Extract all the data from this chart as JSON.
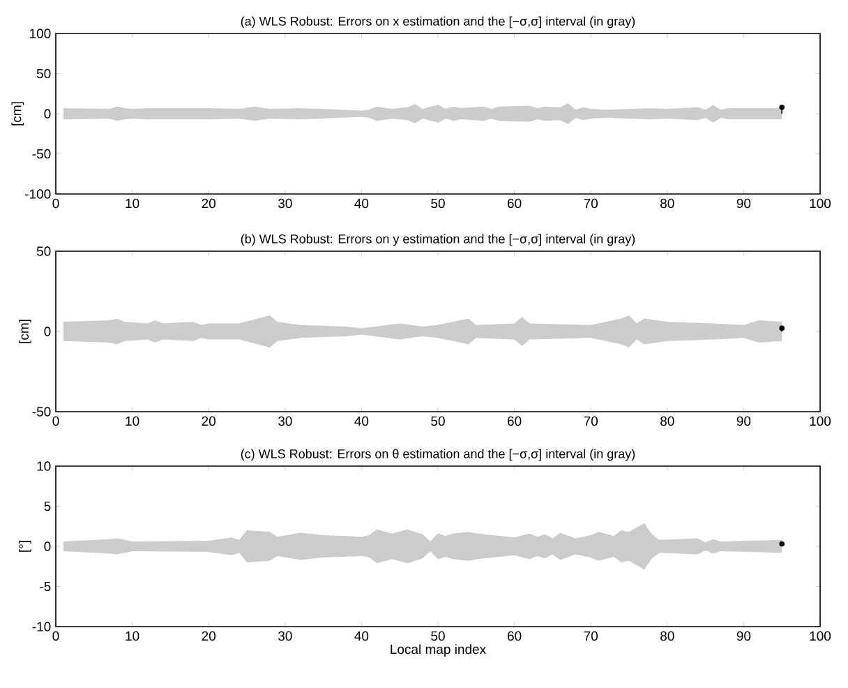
{
  "chart_data": [
    {
      "type": "area",
      "title": "(a) WLS Robust: Errors on x estimation and the [−σ,σ] interval (in gray)",
      "ylabel": "[cm]",
      "xlim": [
        0,
        100
      ],
      "xticks": [
        0,
        10,
        20,
        30,
        40,
        50,
        60,
        70,
        80,
        90,
        100
      ],
      "ylim": [
        -100,
        100
      ],
      "yticks": [
        -100,
        -50,
        0,
        50,
        100
      ],
      "series": [
        {
          "color": "#cccccc",
          "values": [
            null,
            null,
            null,
            null,
            null,
            null,
            null,
            null,
            null,
            null,
            null,
            null,
            null,
            null,
            null,
            null,
            null,
            null,
            null,
            null,
            null,
            null,
            null,
            null,
            null,
            null,
            null,
            null,
            null,
            null,
            null,
            null,
            null,
            null,
            null,
            null,
            null,
            null,
            null,
            null,
            null,
            null
          ],
          "x": [
            1,
            7,
            8,
            9,
            10,
            12,
            20,
            24,
            26,
            28,
            32,
            40,
            41,
            42,
            44,
            46,
            47,
            48,
            50,
            51,
            52,
            53,
            56,
            57,
            58,
            62,
            63,
            64,
            66,
            67,
            68,
            69,
            70,
            72,
            78,
            80,
            84,
            85,
            86,
            87,
            88,
            95
          ],
          "upper": [
            7,
            6,
            9,
            7,
            6,
            7,
            7,
            6,
            9,
            6,
            7,
            4,
            5,
            9,
            6,
            8,
            12,
            6,
            11,
            6,
            9,
            7,
            9,
            6,
            9,
            10,
            7,
            9,
            8,
            13,
            5,
            8,
            6,
            5,
            7,
            6,
            8,
            5,
            11,
            5,
            7,
            7
          ],
          "lower": [
            -7,
            -6,
            -9,
            -7,
            -6,
            -7,
            -7,
            -6,
            -9,
            -6,
            -7,
            -4,
            -5,
            -9,
            -6,
            -8,
            -12,
            -6,
            -11,
            -6,
            -9,
            -7,
            -9,
            -6,
            -9,
            -10,
            -7,
            -9,
            -8,
            -13,
            -5,
            -8,
            -6,
            -5,
            -7,
            -6,
            -8,
            -5,
            -11,
            -5,
            -7,
            -7
          ]
        },
        {
          "type": "lollipop",
          "color": "#000000",
          "marker": "circle",
          "x": [
            95
          ],
          "values": [
            8
          ]
        }
      ]
    },
    {
      "type": "area",
      "title": "(b) WLS Robust: Errors on y estimation and the [−σ,σ] interval (in gray)",
      "ylabel": "[cm]",
      "xlim": [
        0,
        100
      ],
      "xticks": [
        0,
        10,
        20,
        30,
        40,
        50,
        60,
        70,
        80,
        90,
        100
      ],
      "ylim": [
        -50,
        50
      ],
      "yticks": [
        -50,
        0,
        50
      ],
      "series": [
        {
          "color": "#cccccc",
          "values": [
            null,
            null,
            null,
            null,
            null,
            null,
            null,
            null,
            null,
            null,
            null,
            null,
            null,
            null,
            null,
            null,
            null,
            null,
            null,
            null,
            null,
            null,
            null,
            null,
            null,
            null,
            null,
            null,
            null,
            null,
            null,
            null,
            null,
            null
          ],
          "x": [
            1,
            7,
            8,
            9,
            12,
            13,
            14,
            18,
            19,
            20,
            24,
            28,
            29,
            32,
            38,
            40,
            45,
            48,
            50,
            54,
            55,
            60,
            61,
            62,
            70,
            74,
            75,
            76,
            77,
            80,
            86,
            90,
            92,
            95
          ],
          "upper": [
            6,
            7,
            8,
            6,
            5,
            7,
            5,
            6,
            4,
            5,
            5,
            10,
            6,
            4,
            3,
            2,
            5,
            3,
            4,
            8,
            4,
            5,
            9,
            5,
            4,
            8,
            10,
            5,
            8,
            6,
            5,
            4,
            7,
            6
          ],
          "lower": [
            -6,
            -7,
            -8,
            -6,
            -5,
            -7,
            -5,
            -6,
            -4,
            -5,
            -5,
            -10,
            -6,
            -4,
            -3,
            -2,
            -5,
            -3,
            -4,
            -8,
            -4,
            -5,
            -9,
            -5,
            -4,
            -8,
            -10,
            -5,
            -8,
            -6,
            -5,
            -4,
            -7,
            -6
          ]
        },
        {
          "type": "lollipop",
          "color": "#000000",
          "marker": "circle",
          "x": [
            95
          ],
          "values": [
            2
          ]
        }
      ]
    },
    {
      "type": "area",
      "title": "(c) WLS Robust: Errors on θ estimation and the [−σ,σ] interval (in gray)",
      "xlabel": "Local map index",
      "ylabel": "[°]",
      "xlim": [
        0,
        100
      ],
      "xticks": [
        0,
        10,
        20,
        30,
        40,
        50,
        60,
        70,
        80,
        90,
        100
      ],
      "ylim": [
        -10,
        10
      ],
      "yticks": [
        -10,
        -5,
        0,
        5,
        10
      ],
      "series": [
        {
          "color": "#cccccc",
          "values": [
            null,
            null,
            null,
            null,
            null,
            null,
            null,
            null,
            null,
            null,
            null,
            null,
            null,
            null,
            null,
            null,
            null,
            null,
            null,
            null,
            null,
            null,
            null,
            null,
            null,
            null,
            null,
            null,
            null,
            null,
            null,
            null,
            null,
            null,
            null,
            null,
            null,
            null,
            null,
            null,
            null,
            null,
            null,
            null
          ],
          "x": [
            1,
            7,
            8,
            10,
            20,
            23,
            24,
            25,
            28,
            29,
            32,
            35,
            40,
            41,
            42,
            44,
            46,
            48,
            49,
            50,
            51,
            52,
            54,
            55,
            60,
            62,
            63,
            64,
            65,
            66,
            68,
            70,
            71,
            73,
            74,
            75,
            77,
            78,
            79,
            84,
            85,
            86,
            87,
            95
          ],
          "upper": [
            0.6,
            0.9,
            1.0,
            0.6,
            0.7,
            1.1,
            0.8,
            2.0,
            1.8,
            1.2,
            1.7,
            1.4,
            1.2,
            1.4,
            2.1,
            1.6,
            2.1,
            1.5,
            0.6,
            1.6,
            1.3,
            1.6,
            1.8,
            1.6,
            1.1,
            1.6,
            1.2,
            1.5,
            1.0,
            1.7,
            1.0,
            1.4,
            1.8,
            1.3,
            2.0,
            1.8,
            2.9,
            1.5,
            0.8,
            1.0,
            0.5,
            0.9,
            0.6,
            0.8
          ],
          "lower": [
            -0.6,
            -0.9,
            -1.0,
            -0.6,
            -0.7,
            -1.1,
            -0.8,
            -2.0,
            -1.8,
            -1.2,
            -1.7,
            -1.4,
            -1.2,
            -1.4,
            -2.1,
            -1.6,
            -2.1,
            -1.5,
            -0.6,
            -1.6,
            -1.3,
            -1.6,
            -1.8,
            -1.6,
            -1.1,
            -1.6,
            -1.2,
            -1.5,
            -1.0,
            -1.7,
            -1.0,
            -1.4,
            -1.8,
            -1.3,
            -2.0,
            -1.8,
            -2.9,
            -1.5,
            -0.8,
            -1.0,
            -0.5,
            -0.9,
            -0.6,
            -0.8
          ]
        },
        {
          "type": "lollipop",
          "color": "#000000",
          "marker": "circle",
          "x": [
            95
          ],
          "values": [
            0.3
          ]
        }
      ]
    }
  ]
}
